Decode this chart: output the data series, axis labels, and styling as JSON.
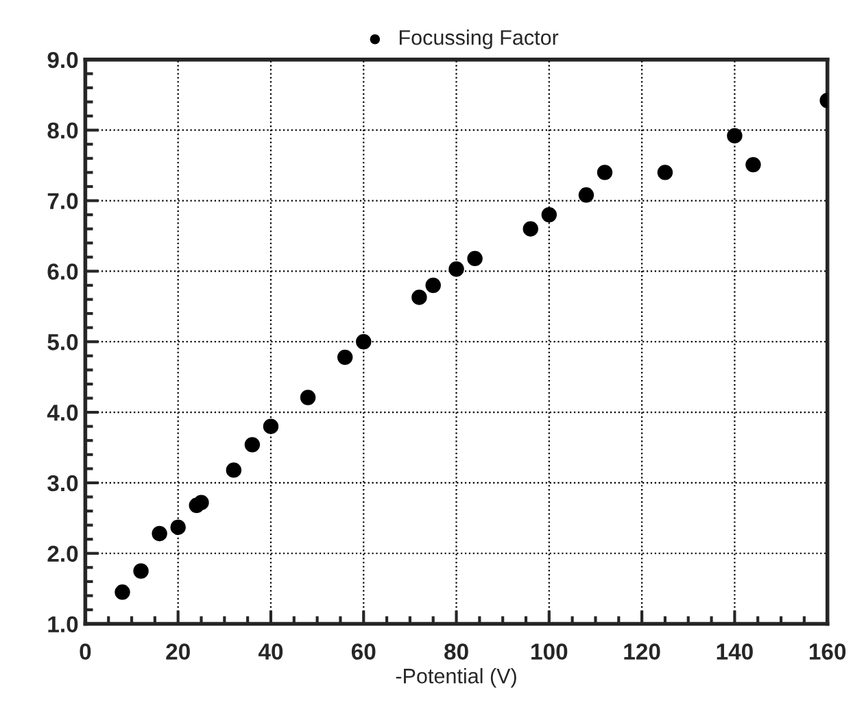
{
  "chart_data": {
    "type": "scatter",
    "xlabel": "-Potential (V)",
    "x": [
      8,
      12,
      16,
      20,
      24,
      25,
      32,
      36,
      40,
      48,
      56,
      60,
      72,
      75,
      80,
      84,
      96,
      100,
      108,
      112,
      125,
      140,
      144,
      160
    ],
    "series": [
      {
        "name": "Focussing Factor",
        "color": "#000000",
        "values": [
          1.45,
          1.75,
          2.28,
          2.37,
          2.68,
          2.72,
          3.18,
          3.54,
          3.8,
          4.21,
          4.78,
          5.0,
          5.63,
          5.8,
          6.03,
          6.18,
          6.6,
          6.8,
          7.08,
          7.4,
          7.4,
          7.92,
          7.51,
          8.42
        ]
      }
    ],
    "xlim": [
      0,
      160
    ],
    "xticks": [
      0,
      20,
      40,
      60,
      80,
      100,
      120,
      140,
      160
    ],
    "ylim": [
      1,
      9
    ],
    "yticks": [
      {
        "value": 1,
        "label": "1.0"
      },
      {
        "value": 2,
        "label": "2.0"
      },
      {
        "value": 3,
        "label": "3.0"
      },
      {
        "value": 4,
        "label": "4.0"
      },
      {
        "value": 5,
        "label": "5.0"
      },
      {
        "value": 6,
        "label": "6.0"
      },
      {
        "value": 7,
        "label": "7.0"
      },
      {
        "value": 8,
        "label": "8.0"
      },
      {
        "value": 9,
        "label": "9.0"
      }
    ],
    "grid": true,
    "legend": "top",
    "marker": "circle"
  }
}
